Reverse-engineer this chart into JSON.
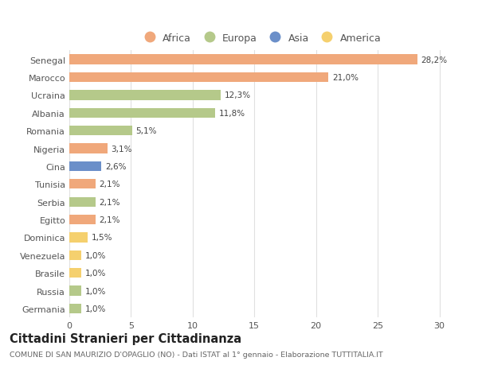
{
  "countries": [
    "Senegal",
    "Marocco",
    "Ucraina",
    "Albania",
    "Romania",
    "Nigeria",
    "Cina",
    "Tunisia",
    "Serbia",
    "Egitto",
    "Dominica",
    "Venezuela",
    "Brasile",
    "Russia",
    "Germania"
  ],
  "values": [
    28.2,
    21.0,
    12.3,
    11.8,
    5.1,
    3.1,
    2.6,
    2.1,
    2.1,
    2.1,
    1.5,
    1.0,
    1.0,
    1.0,
    1.0
  ],
  "labels": [
    "28,2%",
    "21,0%",
    "12,3%",
    "11,8%",
    "5,1%",
    "3,1%",
    "2,6%",
    "2,1%",
    "2,1%",
    "2,1%",
    "1,5%",
    "1,0%",
    "1,0%",
    "1,0%",
    "1,0%"
  ],
  "continents": [
    "Africa",
    "Africa",
    "Europa",
    "Europa",
    "Europa",
    "Africa",
    "Asia",
    "Africa",
    "Europa",
    "Africa",
    "America",
    "America",
    "America",
    "Europa",
    "Europa"
  ],
  "colors": {
    "Africa": "#F0A87B",
    "Europa": "#B5C98A",
    "Asia": "#6B8FC9",
    "America": "#F5D06E"
  },
  "legend_order": [
    "Africa",
    "Europa",
    "Asia",
    "America"
  ],
  "legend_colors": [
    "#F0A87B",
    "#B5C98A",
    "#6B8FC9",
    "#F5D06E"
  ],
  "title": "Cittadini Stranieri per Cittadinanza",
  "subtitle": "COMUNE DI SAN MAURIZIO D'OPAGLIO (NO) - Dati ISTAT al 1° gennaio - Elaborazione TUTTITALIA.IT",
  "xlim": [
    0,
    31
  ],
  "xticks": [
    0,
    5,
    10,
    15,
    20,
    25,
    30
  ],
  "background_color": "#ffffff",
  "grid_color": "#e0e0e0"
}
